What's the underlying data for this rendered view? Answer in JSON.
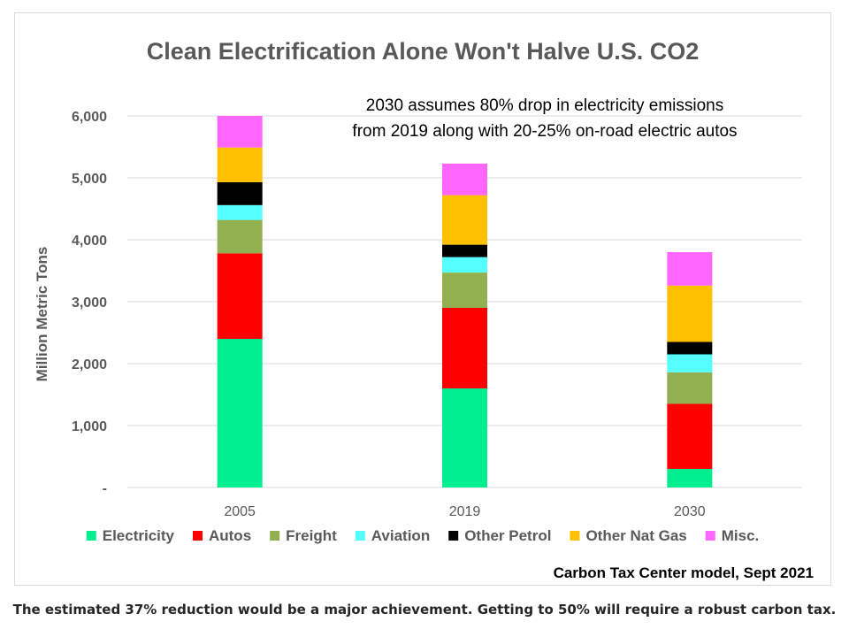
{
  "chart_data": {
    "type": "bar",
    "stacked": true,
    "title": "Clean Electrification Alone Won't Halve U.S. CO2",
    "annotation_lines": [
      "2030 assumes 80% drop in electricity emissions",
      "from 2019 along with 20-25% on-road electric autos"
    ],
    "ylabel": "Million Metric Tons",
    "xlabel": "",
    "ylim": [
      0,
      6000
    ],
    "yticks": [
      0,
      1000,
      2000,
      3000,
      4000,
      5000,
      6000
    ],
    "ytick_labels": [
      "-",
      "1,000",
      "2,000",
      "3,000",
      "4,000",
      "5,000",
      "6,000"
    ],
    "categories": [
      "2005",
      "2019",
      "2030"
    ],
    "grid": true,
    "legend_position": "bottom",
    "series": [
      {
        "name": "Electricity",
        "color": "#00ee90",
        "values": [
          2400,
          1600,
          300
        ]
      },
      {
        "name": "Autos",
        "color": "#ff0000",
        "values": [
          1380,
          1300,
          1050
        ]
      },
      {
        "name": "Freight",
        "color": "#92b050",
        "values": [
          540,
          570,
          510
        ]
      },
      {
        "name": "Aviation",
        "color": "#55ffff",
        "values": [
          240,
          250,
          290
        ]
      },
      {
        "name": "Other Petrol",
        "color": "#000000",
        "values": [
          370,
          200,
          200
        ]
      },
      {
        "name": "Other Nat Gas",
        "color": "#ffc000",
        "values": [
          560,
          800,
          910
        ]
      },
      {
        "name": "Misc.",
        "color": "#ff66ff",
        "values": [
          510,
          510,
          540
        ]
      }
    ],
    "source_note": "Carbon Tax Center model, Sept 2021"
  },
  "caption": "The estimated 37% reduction would be a major achievement. Getting to 50% will require a robust carbon tax."
}
